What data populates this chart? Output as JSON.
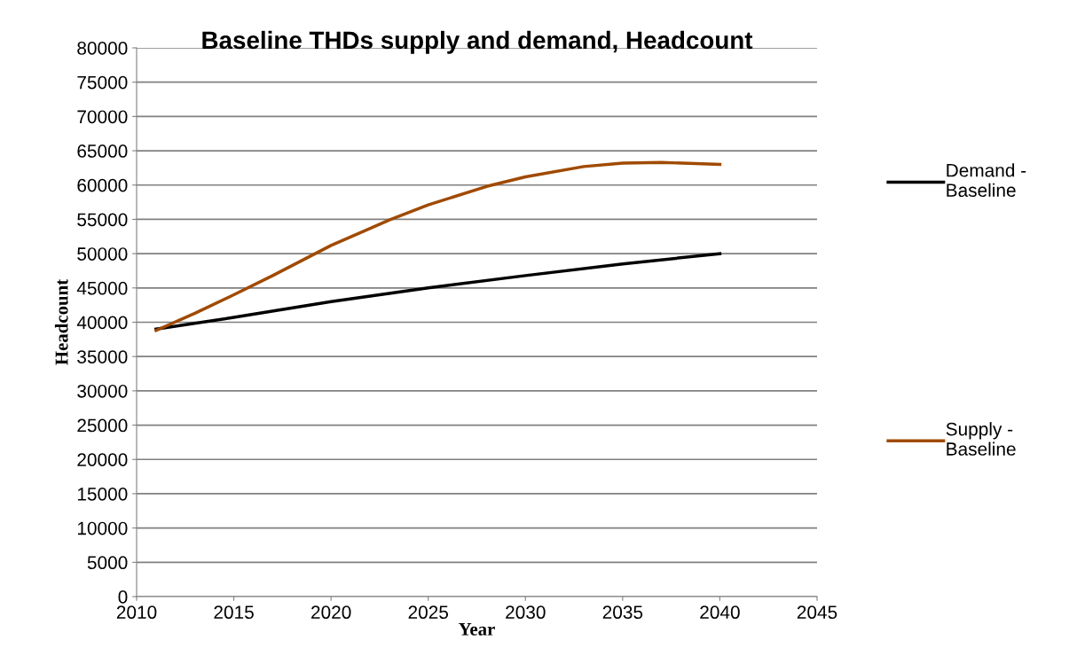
{
  "chart_data": {
    "type": "line",
    "title": "Baseline THDs supply and demand, Headcount",
    "xlabel": "Year",
    "ylabel": "Headcount",
    "series": [
      {
        "name": "Demand - Baseline",
        "color": "#000000",
        "x": [
          2011,
          2015,
          2020,
          2025,
          2030,
          2035,
          2040
        ],
        "values": [
          39000,
          40700,
          43000,
          45000,
          46800,
          48500,
          50000
        ]
      },
      {
        "name": "Supply - Baseline",
        "color": "#a04a00",
        "x": [
          2011,
          2013,
          2015,
          2017,
          2020,
          2023,
          2025,
          2028,
          2030,
          2033,
          2035,
          2037,
          2040
        ],
        "values": [
          38800,
          41300,
          44000,
          46800,
          51200,
          54900,
          57100,
          59800,
          61200,
          62700,
          63200,
          63300,
          63000
        ]
      }
    ],
    "xlim": [
      2010,
      2045
    ],
    "xticks": [
      2010,
      2015,
      2020,
      2025,
      2030,
      2035,
      2040,
      2045
    ],
    "ylim": [
      0,
      80000
    ],
    "yticks": [
      0,
      5000,
      10000,
      15000,
      20000,
      25000,
      30000,
      35000,
      40000,
      45000,
      50000,
      55000,
      60000,
      65000,
      70000,
      75000,
      80000
    ],
    "grid": "y",
    "legend": "right",
    "marker": "none",
    "line_style": "solid"
  }
}
